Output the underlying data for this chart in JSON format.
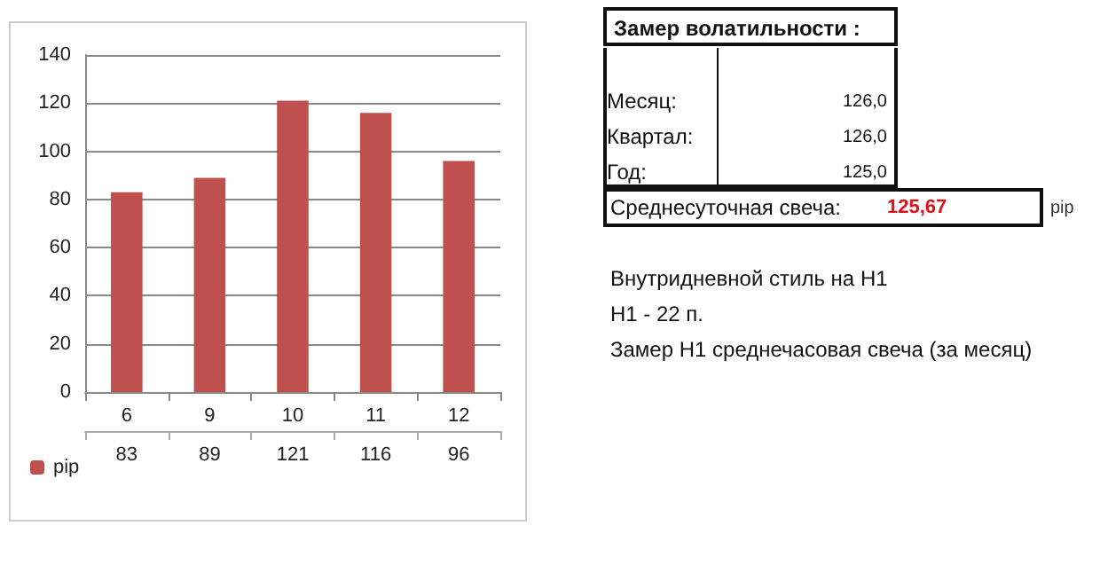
{
  "chart_data": [
    {
      "type": "bar",
      "categories": [
        "6",
        "9",
        "10",
        "11",
        "12"
      ],
      "series": [
        {
          "name": "pip",
          "color": "#c0504d",
          "values": [
            83,
            89,
            121,
            116,
            96
          ]
        }
      ],
      "ylim": [
        0,
        140
      ],
      "yticks": [
        0,
        20,
        40,
        60,
        80,
        100,
        120,
        140
      ],
      "grid": "y",
      "legend": "bottom left",
      "data_labels": true
    },
    {
      "type": "other",
      "title": "Замер  волатильности  :",
      "annotations": [
        "Месяц:",
        "126,0",
        "Квартал:",
        "126,0",
        "Год:",
        "125,0",
        "Среднесуточная свеча:",
        "125,67",
        "pip",
        "Внутридневной стиль на H1",
        "H1 - 22 п.",
        "Замер H1 среднечасовая свеча (за месяц)"
      ]
    }
  ]
}
